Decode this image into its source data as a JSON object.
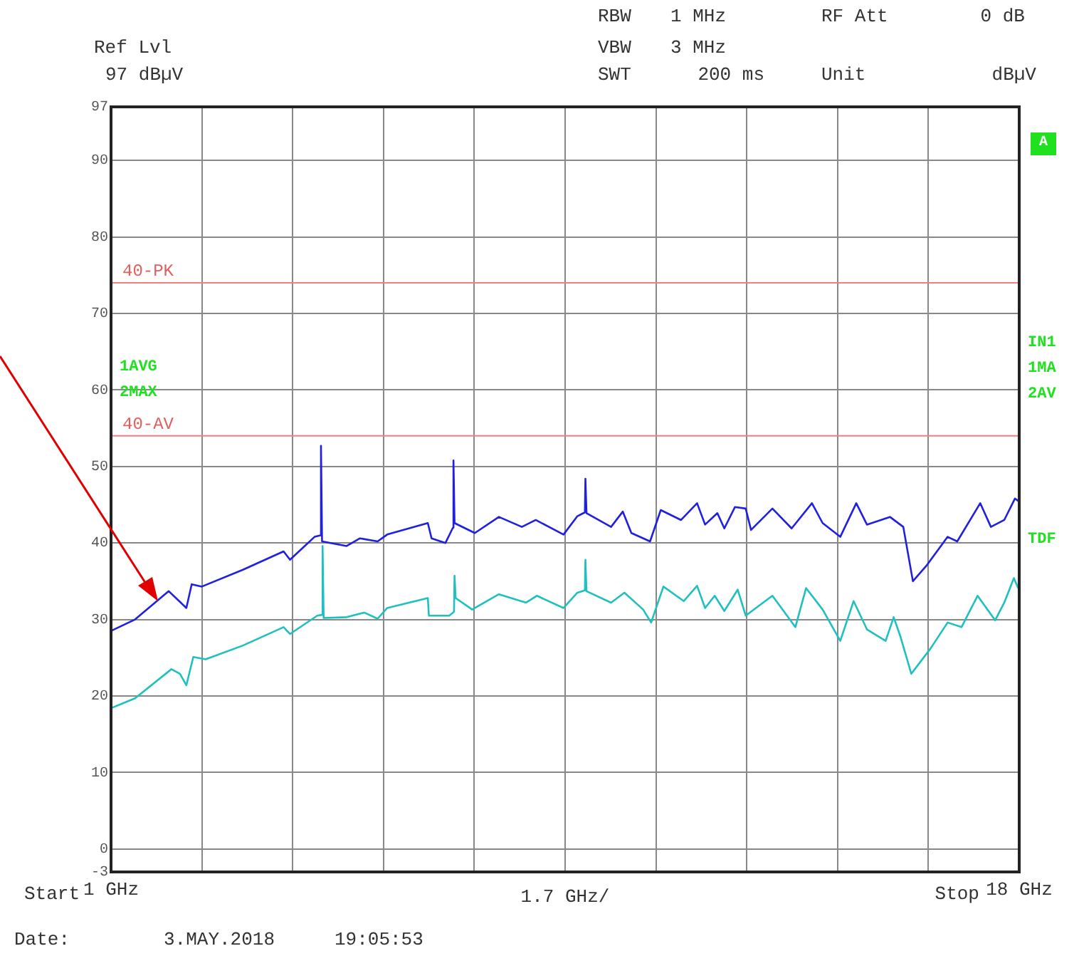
{
  "chart_data": {
    "type": "line",
    "annotations": [
      "Ref Lvl",
      "97 dBµV",
      "RBW",
      "1 MHz",
      "VBW",
      "3 MHz",
      "SWT",
      "200 ms",
      "RF Att",
      "0 dB",
      "Unit",
      "dBµV",
      "Start",
      "Stop",
      "Date:",
      "3.MAY.2018",
      "19:05:53",
      "1AVG",
      "2MAX",
      "A",
      "IN1",
      "1MA",
      "2AV",
      "TDF"
    ],
    "xlabel": "1.7 GHz/",
    "xlim": [
      1,
      18
    ],
    "xticks": [
      {
        "value": 1,
        "label": "1 GHz"
      },
      {
        "value": 2.7,
        "label": null
      },
      {
        "value": 4.4,
        "label": null
      },
      {
        "value": 6.1,
        "label": null
      },
      {
        "value": 7.8,
        "label": null
      },
      {
        "value": 9.5,
        "label": null
      },
      {
        "value": 11.2,
        "label": null
      },
      {
        "value": 12.9,
        "label": null
      },
      {
        "value": 14.6,
        "label": null
      },
      {
        "value": 16.3,
        "label": null
      },
      {
        "value": 18,
        "label": "18 GHz"
      }
    ],
    "ylim": [
      -3,
      97
    ],
    "yticks": [
      -3,
      0,
      10,
      20,
      30,
      40,
      50,
      60,
      70,
      80,
      90,
      97
    ],
    "grid": true,
    "legend": false,
    "marker": "none",
    "line_style": "solid",
    "ref_lines": [
      {
        "axis": "y",
        "value": 74,
        "label": "40-PK",
        "color": "#f08080"
      },
      {
        "axis": "y",
        "value": 54,
        "label": "40-AV",
        "color": "#f08080"
      }
    ],
    "series": [
      {
        "color": "#2020e0",
        "x": [
          1,
          1.45,
          2.08,
          2.41,
          2.51,
          2.7,
          3.47,
          4.23,
          4.35,
          4.81,
          4.92,
          4.93,
          4.95,
          5.41,
          5.66,
          5.99,
          6.17,
          6.93,
          7,
          7.26,
          7.4,
          7.41,
          7.43,
          7.81,
          8.26,
          8.69,
          8.95,
          9.47,
          9.73,
          9.87,
          9.88,
          9.9,
          10.36,
          10.58,
          10.74,
          11.09,
          11.29,
          11.67,
          11.97,
          12.12,
          12.35,
          12.48,
          12.68,
          12.88,
          12.98,
          13.38,
          13.74,
          14.12,
          14.32,
          14.65,
          14.95,
          15.15,
          15.58,
          15.83,
          16.01,
          16.26,
          16.66,
          16.84,
          17.27,
          17.47,
          17.72,
          17.92,
          18
        ],
        "values": [
          28.5,
          30,
          33.7,
          31.5,
          34.6,
          34.3,
          36.5,
          38.9,
          37.8,
          40.8,
          41,
          52.7,
          40.2,
          39.6,
          40.6,
          40.2,
          41.1,
          42.6,
          40.6,
          40,
          42,
          50.8,
          42.6,
          41.3,
          43.4,
          42.1,
          43,
          41.1,
          43.5,
          44,
          48.4,
          43.9,
          42.1,
          44.1,
          41.3,
          40.2,
          44.3,
          43,
          45.2,
          42.4,
          43.9,
          41.9,
          44.7,
          44.5,
          41.7,
          44.5,
          41.9,
          45.2,
          42.6,
          40.8,
          45.2,
          42.4,
          43.4,
          42.1,
          35,
          37,
          40.8,
          40.2,
          45.2,
          42.1,
          43,
          45.8,
          45.4
        ]
      },
      {
        "color": "#20c0c0",
        "x": [
          1,
          1.45,
          2.13,
          2.29,
          2.41,
          2.54,
          2.77,
          3.47,
          4.23,
          4.35,
          4.86,
          4.95,
          4.96,
          4.98,
          5.41,
          5.74,
          5.99,
          6.17,
          6.93,
          6.95,
          7.33,
          7.42,
          7.43,
          7.45,
          7.76,
          8.26,
          8.77,
          8.97,
          9.47,
          9.73,
          9.87,
          9.88,
          9.9,
          10.36,
          10.61,
          10.96,
          11.11,
          11.34,
          11.72,
          11.97,
          12.12,
          12.3,
          12.48,
          12.73,
          12.88,
          13.38,
          13.81,
          14.01,
          14.32,
          14.65,
          14.9,
          15.15,
          15.5,
          15.65,
          15.78,
          15.98,
          16.34,
          16.66,
          16.92,
          17.22,
          17.55,
          17.72,
          17.9,
          17.98
        ],
        "values": [
          18.4,
          19.7,
          23.5,
          22.9,
          21.4,
          25.1,
          24.8,
          26.6,
          29,
          28.1,
          30.5,
          30.6,
          39.6,
          30.2,
          30.3,
          30.9,
          30.1,
          31.5,
          32.8,
          30.5,
          30.5,
          31,
          35.7,
          32.8,
          31.3,
          33.3,
          32.2,
          33.1,
          31.5,
          33.5,
          33.8,
          37.8,
          33.7,
          32.2,
          33.5,
          31.3,
          29.6,
          34.3,
          32.4,
          34.4,
          31.5,
          33.1,
          31.1,
          33.9,
          30.5,
          33.1,
          29,
          34.1,
          31.3,
          27.2,
          32.4,
          28.7,
          27.2,
          30.3,
          27.7,
          22.9,
          26.2,
          29.6,
          29,
          33.1,
          29.9,
          32.2,
          35.4,
          34.1
        ]
      }
    ]
  }
}
